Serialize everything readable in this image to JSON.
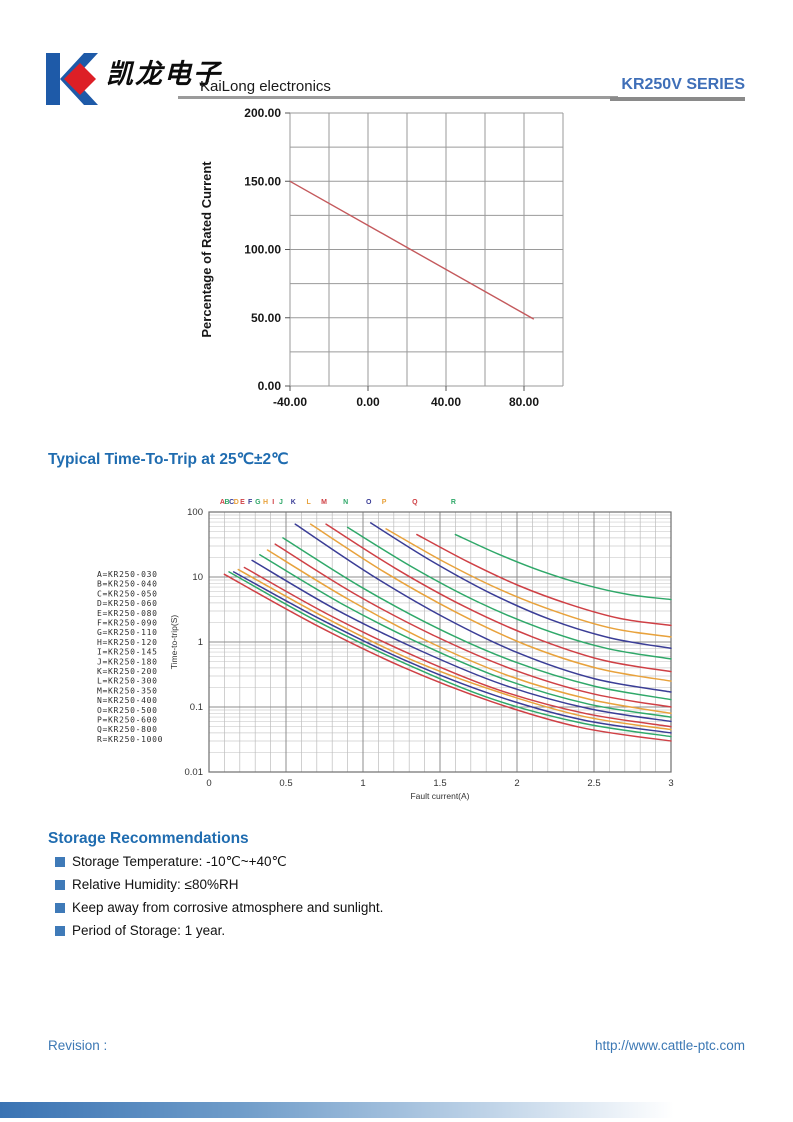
{
  "header": {
    "logo_cn": "凯龙电子",
    "company": "KaiLong electronics",
    "series": "KR250V SERIES",
    "logo_colors": {
      "blue": "#1e5aa8",
      "red": "#dd1f26"
    }
  },
  "trip_section": {
    "title": "Typical Time-To-Trip at 25℃±2℃"
  },
  "storage": {
    "title": "Storage Recommendations",
    "items": [
      "Storage Temperature: -10℃~+40℃",
      "Relative Humidity: ≤80%RH",
      "Keep away from corrosive atmosphere and sunlight.",
      "Period of Storage: 1 year."
    ]
  },
  "footer": {
    "revision": "Revision :",
    "url": "http://www.cattle-ptc.com"
  },
  "chart_data": [
    {
      "name": "current-derating",
      "type": "line",
      "title": "",
      "xlabel": "",
      "ylabel": "Percentage of Rated Current",
      "xlim": [
        -40,
        100
      ],
      "ylim": [
        0,
        200
      ],
      "x_grid_step": 20,
      "y_grid_step": 25,
      "xtick_values": [
        -40,
        0,
        40,
        80
      ],
      "xtick_labels": [
        "-40.00",
        "0.00",
        "40.00",
        "80.00"
      ],
      "ytick_values": [
        0,
        50,
        100,
        150,
        200
      ],
      "ytick_labels": [
        "0.00",
        "50.00",
        "100.00",
        "150.00",
        "200.00"
      ],
      "grid": true,
      "line_color": "#c4595c",
      "series": [
        {
          "name": "derating-line",
          "x": [
            -40,
            85
          ],
          "y": [
            150,
            49
          ]
        }
      ]
    },
    {
      "name": "time-to-trip",
      "type": "line",
      "log_y": true,
      "xlabel": "Fault current(A)",
      "ylabel": "Time-to-trip(S)",
      "xlim": [
        0,
        3
      ],
      "ylim": [
        0.01,
        100
      ],
      "x_minor_step": 0.1,
      "x_major_step": 0.5,
      "xtick_values": [
        0,
        0.5,
        1,
        1.5,
        2,
        2.5,
        3
      ],
      "xtick_labels": [
        "0",
        "0.5",
        "1",
        "1.5",
        "2",
        "2.5",
        "3"
      ],
      "ytick_values": [
        100,
        10,
        1,
        0.1,
        0.01
      ],
      "ytick_labels": [
        "100",
        "10",
        "1",
        "0.1",
        "0.01"
      ],
      "legend_position": "left",
      "series": [
        {
          "letter": "A",
          "model": "KR250-030",
          "color": "#cf4045",
          "x": [
            0.1,
            0.68,
            1.26,
            1.84,
            2.42,
            3.0
          ],
          "t": [
            11,
            1.9,
            0.41,
            0.12,
            0.048,
            0.03
          ]
        },
        {
          "letter": "B",
          "model": "KR250-040",
          "color": "#2fa869",
          "x": [
            0.13,
            0.7,
            1.28,
            1.85,
            2.43,
            3.0
          ],
          "t": [
            12,
            2.1,
            0.46,
            0.13,
            0.056,
            0.035
          ]
        },
        {
          "letter": "C",
          "model": "KR250-050",
          "color": "#3a3d96",
          "x": [
            0.16,
            0.73,
            1.3,
            1.86,
            2.43,
            3.0
          ],
          "t": [
            12,
            2.2,
            0.49,
            0.15,
            0.063,
            0.04
          ]
        },
        {
          "letter": "D",
          "model": "KR250-060",
          "color": "#e8a23c",
          "x": [
            0.19,
            0.75,
            1.31,
            1.88,
            2.44,
            3.0
          ],
          "t": [
            13,
            2.4,
            0.54,
            0.17,
            0.071,
            0.045
          ]
        },
        {
          "letter": "E",
          "model": "KR250-080",
          "color": "#cf4045",
          "x": [
            0.23,
            0.78,
            1.34,
            1.89,
            2.45,
            3.0
          ],
          "t": [
            14,
            2.6,
            0.6,
            0.18,
            0.079,
            0.05
          ]
        },
        {
          "letter": "F",
          "model": "KR250-090",
          "color": "#3a3d96",
          "x": [
            0.28,
            0.82,
            1.37,
            1.91,
            2.46,
            3.0
          ],
          "t": [
            18,
            3.2,
            0.74,
            0.22,
            0.095,
            0.06
          ]
        },
        {
          "letter": "G",
          "model": "KR250-110",
          "color": "#2fa869",
          "x": [
            0.33,
            0.86,
            1.4,
            1.93,
            2.47,
            3.0
          ],
          "t": [
            22,
            3.9,
            0.88,
            0.26,
            0.11,
            0.07
          ]
        },
        {
          "letter": "H",
          "model": "KR250-120",
          "color": "#e8a23c",
          "x": [
            0.38,
            0.9,
            1.43,
            1.95,
            2.48,
            3.0
          ],
          "t": [
            26,
            4.6,
            1.0,
            0.3,
            0.13,
            0.08
          ]
        },
        {
          "letter": "I",
          "model": "KR250-145",
          "color": "#cf4045",
          "x": [
            0.43,
            0.94,
            1.46,
            1.97,
            2.49,
            3.0
          ],
          "t": [
            32,
            5.6,
            1.26,
            0.38,
            0.16,
            0.1
          ]
        },
        {
          "letter": "J",
          "model": "KR250-180",
          "color": "#2fa869",
          "x": [
            0.48,
            0.98,
            1.49,
            1.99,
            2.5,
            3.0
          ],
          "t": [
            40,
            7.2,
            1.6,
            0.49,
            0.21,
            0.13
          ]
        },
        {
          "letter": "K",
          "model": "KR250-200",
          "color": "#3a3d96",
          "x": [
            0.56,
            1.05,
            1.54,
            2.02,
            2.51,
            3.0
          ],
          "t": [
            65,
            10.9,
            2.3,
            0.66,
            0.27,
            0.17
          ]
        },
        {
          "letter": "L",
          "model": "KR250-300",
          "color": "#e8a23c",
          "x": [
            0.66,
            1.13,
            1.6,
            2.06,
            2.53,
            3.0
          ],
          "t": [
            65,
            12.3,
            2.9,
            0.9,
            0.39,
            0.25
          ]
        },
        {
          "letter": "M",
          "model": "KR250-350",
          "color": "#cf4045",
          "x": [
            0.76,
            1.21,
            1.66,
            2.1,
            2.55,
            3.0
          ],
          "t": [
            65,
            13.6,
            3.5,
            1.2,
            0.53,
            0.35
          ]
        },
        {
          "letter": "N",
          "model": "KR250-400",
          "color": "#2fa869",
          "x": [
            0.9,
            1.32,
            1.74,
            2.16,
            2.58,
            3.0
          ],
          "t": [
            58,
            14.2,
            4.2,
            1.6,
            0.8,
            0.55
          ]
        },
        {
          "letter": "O",
          "model": "KR250-500",
          "color": "#3a3d96",
          "x": [
            1.05,
            1.44,
            1.83,
            2.22,
            2.61,
            3.0
          ],
          "t": [
            68,
            17.9,
            5.6,
            2.2,
            1.15,
            0.8
          ]
        },
        {
          "letter": "P",
          "model": "KR250-600",
          "color": "#e8a23c",
          "x": [
            1.15,
            1.52,
            1.89,
            2.26,
            2.63,
            3.0
          ],
          "t": [
            55,
            17.4,
            6.4,
            2.9,
            1.6,
            1.2
          ]
        },
        {
          "letter": "Q",
          "model": "KR250-800",
          "color": "#cf4045",
          "x": [
            1.35,
            1.68,
            2.01,
            2.34,
            2.67,
            3.0
          ],
          "t": [
            45,
            17.2,
            7.4,
            3.8,
            2.3,
            1.8
          ]
        },
        {
          "letter": "R",
          "model": "KR250-1000",
          "color": "#2fa869",
          "x": [
            1.6,
            1.88,
            2.16,
            2.44,
            2.72,
            3.0
          ],
          "t": [
            45,
            22.4,
            12.3,
            7.6,
            5.4,
            4.5
          ]
        }
      ]
    }
  ]
}
